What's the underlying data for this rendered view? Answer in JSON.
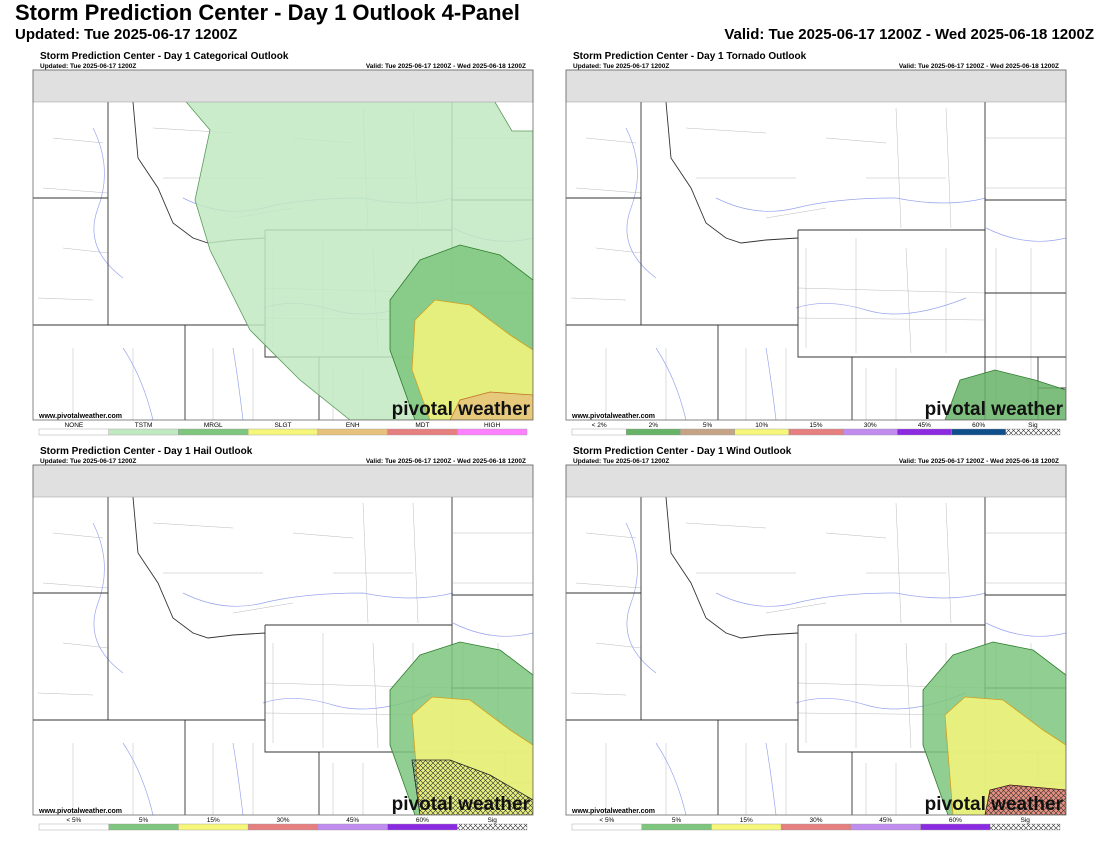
{
  "header": {
    "title": "Storm Prediction Center - Day 1 Outlook 4-Panel",
    "updated": "Updated: Tue 2025-06-17 1200Z",
    "valid": "Valid: Tue 2025-06-17 1200Z - Wed 2025-06-18 1200Z"
  },
  "panels": [
    {
      "title": "Storm Prediction Center - Day 1 Categorical Outlook",
      "updated": "Updated: Tue 2025-06-17 1200Z",
      "valid": "Valid: Tue 2025-06-17 1200Z - Wed 2025-06-18 1200Z",
      "watermark": "www.pivotalweather.com",
      "logo": "pivotal weather",
      "legend": [
        {
          "label": "NONE",
          "color": "#ffffff"
        },
        {
          "label": "TSTM",
          "color": "#c1e9c1"
        },
        {
          "label": "MRGL",
          "color": "#7ec57e"
        },
        {
          "label": "SLGT",
          "color": "#f6f67b"
        },
        {
          "label": "ENH",
          "color": "#e6c27a"
        },
        {
          "label": "MDT",
          "color": "#e67f7f"
        },
        {
          "label": "HIGH",
          "color": "#ff80ff"
        }
      ]
    },
    {
      "title": "Storm Prediction Center - Day 1 Tornado Outlook",
      "updated": "Updated: Tue 2025-06-17 1200Z",
      "valid": "Valid: Tue 2025-06-17 1200Z - Wed 2025-06-18 1200Z",
      "watermark": "www.pivotalweather.com",
      "logo": "pivotal weather",
      "legend": [
        {
          "label": "< 2%",
          "color": "#ffffff"
        },
        {
          "label": "2%",
          "color": "#66b266"
        },
        {
          "label": "5%",
          "color": "#c4a484"
        },
        {
          "label": "10%",
          "color": "#f6f67b"
        },
        {
          "label": "15%",
          "color": "#e67f7f"
        },
        {
          "label": "30%",
          "color": "#c08cf0"
        },
        {
          "label": "45%",
          "color": "#8a2be2"
        },
        {
          "label": "60%",
          "color": "#104e8b"
        },
        {
          "label": "Sig",
          "color": "#ffffff",
          "hatched": true
        }
      ]
    },
    {
      "title": "Storm Prediction Center - Day 1 Hail Outlook",
      "updated": "Updated: Tue 2025-06-17 1200Z",
      "valid": "Valid: Tue 2025-06-17 1200Z - Wed 2025-06-18 1200Z",
      "watermark": "www.pivotalweather.com",
      "logo": "pivotal weather",
      "legend": [
        {
          "label": "< 5%",
          "color": "#ffffff"
        },
        {
          "label": "5%",
          "color": "#7ec57e"
        },
        {
          "label": "15%",
          "color": "#f6f67b"
        },
        {
          "label": "30%",
          "color": "#e67f7f"
        },
        {
          "label": "45%",
          "color": "#c08cf0"
        },
        {
          "label": "60%",
          "color": "#8a2be2"
        },
        {
          "label": "Sig",
          "color": "#ffffff",
          "hatched": true
        }
      ]
    },
    {
      "title": "Storm Prediction Center - Day 1 Wind Outlook",
      "updated": "Updated: Tue 2025-06-17 1200Z",
      "valid": "Valid: Tue 2025-06-17 1200Z - Wed 2025-06-18 1200Z",
      "watermark": "www.pivotalweather.com",
      "logo": "pivotal weather",
      "legend": [
        {
          "label": "< 5%",
          "color": "#ffffff"
        },
        {
          "label": "5%",
          "color": "#7ec57e"
        },
        {
          "label": "15%",
          "color": "#f6f67b"
        },
        {
          "label": "30%",
          "color": "#e67f7f"
        },
        {
          "label": "45%",
          "color": "#c08cf0"
        },
        {
          "label": "60%",
          "color": "#8a2be2"
        },
        {
          "label": "Sig",
          "color": "#ffffff",
          "hatched": true
        }
      ]
    }
  ]
}
